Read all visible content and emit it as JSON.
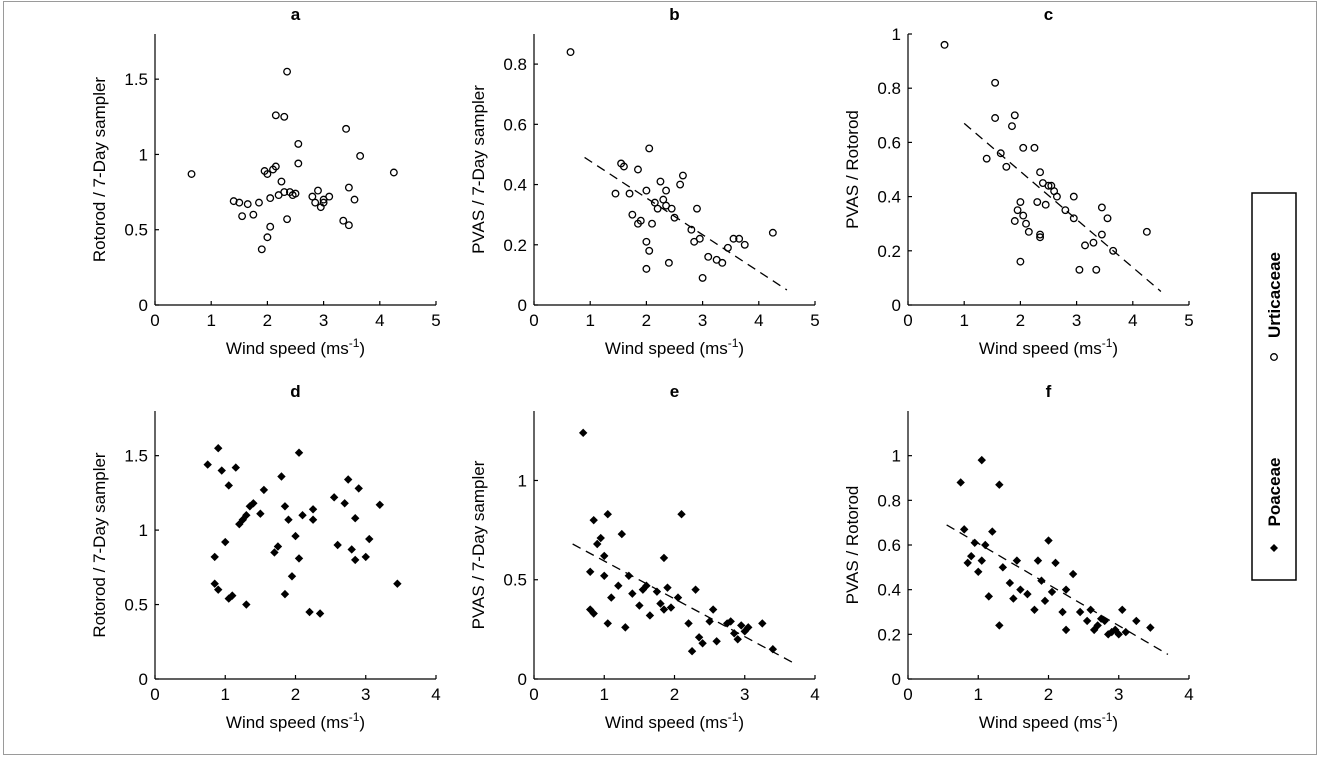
{
  "chart_data": [
    {
      "panel": "a",
      "type": "scatter",
      "title": "a",
      "xlabel": "Wind speed (ms",
      "xlabel_sup": "-1",
      "xlabel_end": ")",
      "ylabel": "Rotorod / 7-Day sampler",
      "xlim": [
        0,
        5
      ],
      "ylim": [
        0,
        1.8
      ],
      "xticks": [
        0,
        1,
        2,
        3,
        4,
        5
      ],
      "yticks": [
        0,
        0.5,
        1,
        1.5
      ],
      "marker": "circle",
      "series_ref": "Urticaceae",
      "points": [
        [
          0.65,
          0.87
        ],
        [
          1.4,
          0.69
        ],
        [
          1.5,
          0.68
        ],
        [
          1.55,
          0.59
        ],
        [
          1.65,
          0.67
        ],
        [
          1.75,
          0.6
        ],
        [
          1.85,
          0.68
        ],
        [
          1.9,
          0.37
        ],
        [
          1.95,
          0.89
        ],
        [
          2.0,
          0.87
        ],
        [
          2.0,
          0.45
        ],
        [
          2.05,
          0.52
        ],
        [
          2.05,
          0.71
        ],
        [
          2.1,
          0.9
        ],
        [
          2.15,
          0.92
        ],
        [
          2.15,
          1.26
        ],
        [
          2.2,
          0.73
        ],
        [
          2.25,
          0.82
        ],
        [
          2.3,
          0.75
        ],
        [
          2.3,
          1.25
        ],
        [
          2.35,
          0.57
        ],
        [
          2.35,
          1.55
        ],
        [
          2.4,
          0.75
        ],
        [
          2.45,
          0.73
        ],
        [
          2.5,
          0.74
        ],
        [
          2.55,
          0.94
        ],
        [
          2.55,
          1.07
        ],
        [
          2.8,
          0.72
        ],
        [
          2.85,
          0.68
        ],
        [
          2.9,
          0.76
        ],
        [
          2.95,
          0.65
        ],
        [
          3.0,
          0.68
        ],
        [
          3.0,
          0.7
        ],
        [
          3.1,
          0.72
        ],
        [
          3.35,
          0.56
        ],
        [
          3.4,
          1.17
        ],
        [
          3.45,
          0.53
        ],
        [
          3.45,
          0.78
        ],
        [
          3.55,
          0.7
        ],
        [
          3.65,
          0.99
        ],
        [
          4.25,
          0.88
        ]
      ]
    },
    {
      "panel": "b",
      "type": "scatter",
      "title": "b",
      "xlabel": "Wind speed (ms",
      "xlabel_sup": "-1",
      "xlabel_end": ")",
      "ylabel": "PVAS / 7-Day sampler",
      "xlim": [
        0,
        5
      ],
      "ylim": [
        0,
        0.9
      ],
      "xticks": [
        0,
        1,
        2,
        3,
        4,
        5
      ],
      "yticks": [
        0,
        0.2,
        0.4,
        0.6,
        0.8
      ],
      "marker": "circle",
      "series_ref": "Urticaceae",
      "trend": [
        [
          0.9,
          0.49
        ],
        [
          4.5,
          0.05
        ]
      ],
      "points": [
        [
          0.65,
          0.84
        ],
        [
          1.45,
          0.37
        ],
        [
          1.55,
          0.47
        ],
        [
          1.6,
          0.46
        ],
        [
          1.7,
          0.37
        ],
        [
          1.75,
          0.3
        ],
        [
          1.85,
          0.27
        ],
        [
          1.85,
          0.45
        ],
        [
          1.9,
          0.28
        ],
        [
          2.0,
          0.21
        ],
        [
          2.0,
          0.38
        ],
        [
          2.0,
          0.12
        ],
        [
          2.05,
          0.52
        ],
        [
          2.05,
          0.18
        ],
        [
          2.1,
          0.27
        ],
        [
          2.15,
          0.34
        ],
        [
          2.2,
          0.32
        ],
        [
          2.25,
          0.41
        ],
        [
          2.3,
          0.35
        ],
        [
          2.35,
          0.33
        ],
        [
          2.35,
          0.38
        ],
        [
          2.4,
          0.14
        ],
        [
          2.45,
          0.32
        ],
        [
          2.5,
          0.29
        ],
        [
          2.6,
          0.4
        ],
        [
          2.65,
          0.43
        ],
        [
          2.8,
          0.25
        ],
        [
          2.85,
          0.21
        ],
        [
          2.9,
          0.32
        ],
        [
          2.95,
          0.22
        ],
        [
          3.0,
          0.09
        ],
        [
          3.1,
          0.16
        ],
        [
          3.25,
          0.15
        ],
        [
          3.35,
          0.14
        ],
        [
          3.45,
          0.19
        ],
        [
          3.55,
          0.22
        ],
        [
          3.65,
          0.22
        ],
        [
          3.75,
          0.2
        ],
        [
          4.25,
          0.24
        ]
      ]
    },
    {
      "panel": "c",
      "type": "scatter",
      "title": "c",
      "xlabel": "Wind speed (ms",
      "xlabel_sup": "-1",
      "xlabel_end": ")",
      "ylabel": "PVAS / Rotorod",
      "xlim": [
        0,
        5
      ],
      "ylim": [
        0,
        1
      ],
      "xticks": [
        0,
        1,
        2,
        3,
        4,
        5
      ],
      "yticks": [
        0,
        0.2,
        0.4,
        0.6,
        0.8,
        1
      ],
      "marker": "circle",
      "series_ref": "Urticaceae",
      "trend": [
        [
          1.0,
          0.67
        ],
        [
          4.5,
          0.05
        ]
      ],
      "points": [
        [
          0.65,
          0.96
        ],
        [
          1.4,
          0.54
        ],
        [
          1.55,
          0.82
        ],
        [
          1.55,
          0.69
        ],
        [
          1.65,
          0.56
        ],
        [
          1.75,
          0.51
        ],
        [
          1.85,
          0.66
        ],
        [
          1.9,
          0.7
        ],
        [
          1.9,
          0.31
        ],
        [
          1.95,
          0.35
        ],
        [
          2.0,
          0.38
        ],
        [
          2.05,
          0.58
        ],
        [
          2.0,
          0.16
        ],
        [
          2.05,
          0.33
        ],
        [
          2.1,
          0.3
        ],
        [
          2.15,
          0.27
        ],
        [
          2.25,
          0.58
        ],
        [
          2.3,
          0.38
        ],
        [
          2.35,
          0.49
        ],
        [
          2.35,
          0.26
        ],
        [
          2.35,
          0.25
        ],
        [
          2.4,
          0.45
        ],
        [
          2.45,
          0.37
        ],
        [
          2.5,
          0.44
        ],
        [
          2.55,
          0.44
        ],
        [
          2.6,
          0.42
        ],
        [
          2.65,
          0.4
        ],
        [
          2.8,
          0.35
        ],
        [
          2.95,
          0.4
        ],
        [
          2.95,
          0.32
        ],
        [
          3.05,
          0.13
        ],
        [
          3.15,
          0.22
        ],
        [
          3.3,
          0.23
        ],
        [
          3.35,
          0.13
        ],
        [
          3.45,
          0.36
        ],
        [
          3.45,
          0.26
        ],
        [
          3.55,
          0.32
        ],
        [
          3.65,
          0.2
        ],
        [
          4.25,
          0.27
        ]
      ]
    },
    {
      "panel": "d",
      "type": "scatter",
      "title": "d",
      "xlabel": "Wind speed (ms",
      "xlabel_sup": "-1",
      "xlabel_end": ")",
      "ylabel": "Rotorod / 7-Day sampler",
      "xlim": [
        0,
        4
      ],
      "ylim": [
        0,
        1.8
      ],
      "xticks": [
        0,
        1,
        2,
        3,
        4
      ],
      "yticks": [
        0,
        0.5,
        1,
        1.5
      ],
      "marker": "diamond",
      "series_ref": "Poaceae",
      "points": [
        [
          0.75,
          1.44
        ],
        [
          0.85,
          0.82
        ],
        [
          0.85,
          0.64
        ],
        [
          0.9,
          1.55
        ],
        [
          0.9,
          0.6
        ],
        [
          0.95,
          1.4
        ],
        [
          1.0,
          0.92
        ],
        [
          1.05,
          1.3
        ],
        [
          1.05,
          0.54
        ],
        [
          1.1,
          0.56
        ],
        [
          1.15,
          1.42
        ],
        [
          1.2,
          1.04
        ],
        [
          1.25,
          1.07
        ],
        [
          1.3,
          1.1
        ],
        [
          1.3,
          0.5
        ],
        [
          1.35,
          1.16
        ],
        [
          1.4,
          1.18
        ],
        [
          1.5,
          1.11
        ],
        [
          1.55,
          1.27
        ],
        [
          1.7,
          0.85
        ],
        [
          1.75,
          0.89
        ],
        [
          1.8,
          1.36
        ],
        [
          1.85,
          1.16
        ],
        [
          1.85,
          0.57
        ],
        [
          1.9,
          1.07
        ],
        [
          1.95,
          0.69
        ],
        [
          2.0,
          0.96
        ],
        [
          2.05,
          0.81
        ],
        [
          2.05,
          1.52
        ],
        [
          2.1,
          1.1
        ],
        [
          2.2,
          0.45
        ],
        [
          2.25,
          1.14
        ],
        [
          2.25,
          1.07
        ],
        [
          2.35,
          0.44
        ],
        [
          2.55,
          1.22
        ],
        [
          2.6,
          0.9
        ],
        [
          2.7,
          1.18
        ],
        [
          2.75,
          1.34
        ],
        [
          2.8,
          0.87
        ],
        [
          2.85,
          1.08
        ],
        [
          2.85,
          0.8
        ],
        [
          2.9,
          1.28
        ],
        [
          3.0,
          0.82
        ],
        [
          3.05,
          0.94
        ],
        [
          3.2,
          1.17
        ],
        [
          3.45,
          0.64
        ]
      ]
    },
    {
      "panel": "e",
      "type": "scatter",
      "title": "e",
      "xlabel": "Wind speed (ms",
      "xlabel_sup": "-1",
      "xlabel_end": ")",
      "ylabel": "PVAS / 7-Day sampler",
      "xlim": [
        0,
        4
      ],
      "ylim": [
        0,
        1.35
      ],
      "xticks": [
        0,
        1,
        2,
        3,
        4
      ],
      "yticks": [
        0,
        0.5,
        1
      ],
      "marker": "diamond",
      "series_ref": "Poaceae",
      "trend": [
        [
          0.55,
          0.68
        ],
        [
          3.7,
          0.08
        ]
      ],
      "points": [
        [
          0.7,
          1.24
        ],
        [
          0.8,
          0.35
        ],
        [
          0.8,
          0.54
        ],
        [
          0.85,
          0.8
        ],
        [
          0.85,
          0.33
        ],
        [
          0.9,
          0.68
        ],
        [
          0.95,
          0.71
        ],
        [
          1.0,
          0.52
        ],
        [
          1.0,
          0.62
        ],
        [
          1.05,
          0.28
        ],
        [
          1.05,
          0.83
        ],
        [
          1.1,
          0.41
        ],
        [
          1.2,
          0.47
        ],
        [
          1.25,
          0.73
        ],
        [
          1.3,
          0.26
        ],
        [
          1.35,
          0.52
        ],
        [
          1.4,
          0.43
        ],
        [
          1.5,
          0.37
        ],
        [
          1.55,
          0.45
        ],
        [
          1.6,
          0.47
        ],
        [
          1.65,
          0.32
        ],
        [
          1.75,
          0.44
        ],
        [
          1.8,
          0.38
        ],
        [
          1.85,
          0.61
        ],
        [
          1.85,
          0.35
        ],
        [
          1.9,
          0.46
        ],
        [
          1.95,
          0.36
        ],
        [
          2.05,
          0.41
        ],
        [
          2.1,
          0.83
        ],
        [
          2.2,
          0.28
        ],
        [
          2.25,
          0.14
        ],
        [
          2.3,
          0.45
        ],
        [
          2.35,
          0.21
        ],
        [
          2.4,
          0.18
        ],
        [
          2.5,
          0.29
        ],
        [
          2.55,
          0.35
        ],
        [
          2.6,
          0.19
        ],
        [
          2.75,
          0.28
        ],
        [
          2.8,
          0.29
        ],
        [
          2.85,
          0.23
        ],
        [
          2.9,
          0.2
        ],
        [
          2.95,
          0.27
        ],
        [
          3.0,
          0.24
        ],
        [
          3.05,
          0.26
        ],
        [
          3.25,
          0.28
        ],
        [
          3.4,
          0.15
        ]
      ]
    },
    {
      "panel": "f",
      "type": "scatter",
      "title": "f",
      "xlabel": "Wind speed (ms",
      "xlabel_sup": "-1",
      "xlabel_end": ")",
      "ylabel": "PVAS / Rotorod",
      "xlim": [
        0,
        4
      ],
      "ylim": [
        0,
        1.2
      ],
      "xticks": [
        0,
        1,
        2,
        3,
        4
      ],
      "yticks": [
        0,
        0.2,
        0.4,
        0.6,
        0.8,
        1
      ],
      "marker": "diamond",
      "series_ref": "Poaceae",
      "trend": [
        [
          0.55,
          0.69
        ],
        [
          3.7,
          0.11
        ]
      ],
      "points": [
        [
          0.75,
          0.88
        ],
        [
          0.8,
          0.67
        ],
        [
          0.85,
          0.52
        ],
        [
          0.9,
          0.55
        ],
        [
          0.95,
          0.61
        ],
        [
          1.0,
          0.48
        ],
        [
          1.05,
          0.98
        ],
        [
          1.05,
          0.53
        ],
        [
          1.1,
          0.6
        ],
        [
          1.15,
          0.37
        ],
        [
          1.2,
          0.66
        ],
        [
          1.3,
          0.87
        ],
        [
          1.3,
          0.24
        ],
        [
          1.35,
          0.5
        ],
        [
          1.45,
          0.43
        ],
        [
          1.5,
          0.36
        ],
        [
          1.55,
          0.53
        ],
        [
          1.6,
          0.4
        ],
        [
          1.7,
          0.38
        ],
        [
          1.8,
          0.31
        ],
        [
          1.85,
          0.53
        ],
        [
          1.9,
          0.44
        ],
        [
          1.95,
          0.35
        ],
        [
          2.0,
          0.62
        ],
        [
          2.05,
          0.39
        ],
        [
          2.1,
          0.52
        ],
        [
          2.2,
          0.3
        ],
        [
          2.25,
          0.4
        ],
        [
          2.25,
          0.22
        ],
        [
          2.35,
          0.47
        ],
        [
          2.45,
          0.3
        ],
        [
          2.55,
          0.26
        ],
        [
          2.6,
          0.31
        ],
        [
          2.65,
          0.22
        ],
        [
          2.7,
          0.24
        ],
        [
          2.75,
          0.27
        ],
        [
          2.8,
          0.26
        ],
        [
          2.85,
          0.2
        ],
        [
          2.9,
          0.21
        ],
        [
          2.95,
          0.22
        ],
        [
          3.0,
          0.2
        ],
        [
          3.05,
          0.31
        ],
        [
          3.1,
          0.21
        ],
        [
          3.25,
          0.26
        ],
        [
          3.45,
          0.23
        ]
      ]
    }
  ],
  "legend": {
    "items": [
      {
        "marker": "circle",
        "label": "Urticaceae"
      },
      {
        "marker": "diamond",
        "label": "Poaceae"
      }
    ]
  }
}
